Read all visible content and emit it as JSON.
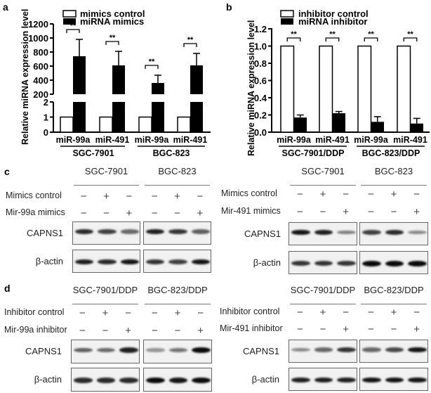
{
  "panels": {
    "a": {
      "letter": "a"
    },
    "b": {
      "letter": "b"
    },
    "c": {
      "letter": "c"
    },
    "d": {
      "letter": "d"
    }
  },
  "chart_data": [
    {
      "id": "a",
      "type": "bar",
      "title": "",
      "ylabel": "Relative miRNA expression level",
      "xlabel": "",
      "categories": [
        "miR-99a",
        "miR-491",
        "miR-99a",
        "miR-491"
      ],
      "groups": [
        "SGC-7901",
        "BGC-823"
      ],
      "series": [
        {
          "name": "mimics control",
          "color": "#ffffff",
          "values": [
            1,
            1,
            1,
            1
          ],
          "errors": [
            0,
            0,
            0,
            0
          ]
        },
        {
          "name": "miRNA mimics",
          "color": "#000000",
          "values": [
            740,
            610,
            360,
            610
          ],
          "errors": [
            240,
            200,
            110,
            170
          ]
        }
      ],
      "significance": [
        "**",
        "**",
        "**",
        "**"
      ],
      "y_axis_break": {
        "lower": [
          0,
          2
        ],
        "upper": [
          200,
          1200
        ]
      },
      "lower_ticks": [
        "0",
        "1",
        "2"
      ],
      "upper_ticks": [
        "200",
        "400",
        "600",
        "800",
        "1000",
        "1200"
      ],
      "legend_position": "top-left",
      "grid": false
    },
    {
      "id": "b",
      "type": "bar",
      "title": "",
      "ylabel": "Relative miRNA expression level",
      "xlabel": "",
      "categories": [
        "miR-99a",
        "miR-491",
        "miR-99a",
        "miR-491"
      ],
      "groups": [
        "SGC-7901/DDP",
        "BGC-823/DDP"
      ],
      "series": [
        {
          "name": "inhibitor control",
          "color": "#ffffff",
          "values": [
            1.0,
            1.0,
            1.0,
            1.0
          ],
          "errors": [
            0,
            0,
            0,
            0
          ]
        },
        {
          "name": "miRNA inhibitor",
          "color": "#000000",
          "values": [
            0.17,
            0.22,
            0.12,
            0.1
          ],
          "errors": [
            0.03,
            0.02,
            0.06,
            0.06
          ]
        }
      ],
      "significance": [
        "**",
        "**",
        "**",
        "**"
      ],
      "ylim": [
        0,
        1.2
      ],
      "ticks": [
        "0.0",
        "0.2",
        "0.4",
        "0.6",
        "0.8",
        "1.0",
        "1.2"
      ],
      "legend_position": "top-left",
      "grid": false
    }
  ],
  "blots": {
    "c_left": {
      "cell_lines": [
        "SGC-7901",
        "BGC-823"
      ],
      "rows": [
        {
          "label": "Mimics control",
          "signs": [
            "−",
            "+",
            "−",
            "−",
            "+",
            "−"
          ]
        },
        {
          "label": "Mir-99a mimics",
          "signs": [
            "−",
            "−",
            "+",
            "−",
            "−",
            "+"
          ]
        }
      ],
      "proteins": [
        {
          "label": "CAPNS1",
          "intensity": [
            [
              0.85,
              0.75,
              0.55
            ],
            [
              0.9,
              0.8,
              0.6
            ]
          ]
        },
        {
          "label": "β-actin",
          "intensity": [
            [
              0.9,
              0.85,
              0.95
            ],
            [
              0.8,
              0.75,
              0.95
            ]
          ]
        }
      ]
    },
    "c_right": {
      "cell_lines": [
        "SGC-7901",
        "BGC-823"
      ],
      "rows": [
        {
          "label": "Mimics control",
          "signs": [
            "−",
            "+",
            "−",
            "−",
            "+",
            "−"
          ]
        },
        {
          "label": "Mir-491 mimics",
          "signs": [
            "−",
            "−",
            "+",
            "−",
            "−",
            "+"
          ]
        }
      ],
      "proteins": [
        {
          "label": "CAPNS1",
          "intensity": [
            [
              0.95,
              0.9,
              0.45
            ],
            [
              0.75,
              0.85,
              0.4
            ]
          ]
        },
        {
          "label": "β-actin",
          "intensity": [
            [
              0.8,
              0.8,
              0.8
            ],
            [
              1.0,
              1.0,
              1.0
            ]
          ]
        }
      ]
    },
    "d_left": {
      "cell_lines": [
        "SGC-7901/DDP",
        "BGC-823/DDP"
      ],
      "rows": [
        {
          "label": "Inhibitor control",
          "signs": [
            "−",
            "+",
            "−",
            "−",
            "+",
            "−"
          ]
        },
        {
          "label": "Mir-99a inhibitor",
          "signs": [
            "−",
            "−",
            "+",
            "−",
            "−",
            "+"
          ]
        }
      ],
      "proteins": [
        {
          "label": "CAPNS1",
          "intensity": [
            [
              0.6,
              0.55,
              0.9
            ],
            [
              0.35,
              0.5,
              1.0
            ]
          ]
        },
        {
          "label": "β-actin",
          "intensity": [
            [
              0.85,
              0.85,
              0.85
            ],
            [
              1.0,
              0.95,
              1.0
            ]
          ]
        }
      ]
    },
    "d_right": {
      "cell_lines": [
        "SGC-7901/DDP",
        "BGC-823/DDP"
      ],
      "rows": [
        {
          "label": "Inhibitor control",
          "signs": [
            "−",
            "+",
            "−",
            "−",
            "+",
            "−"
          ]
        },
        {
          "label": "Mir-491 inhibitor",
          "signs": [
            "−",
            "−",
            "+",
            "−",
            "−",
            "+"
          ]
        }
      ],
      "proteins": [
        {
          "label": "CAPNS1",
          "intensity": [
            [
              0.4,
              0.55,
              0.8
            ],
            [
              0.55,
              0.7,
              0.95
            ]
          ]
        },
        {
          "label": "β-actin",
          "intensity": [
            [
              0.9,
              0.9,
              0.9
            ],
            [
              0.95,
              0.95,
              0.95
            ]
          ]
        }
      ]
    }
  }
}
